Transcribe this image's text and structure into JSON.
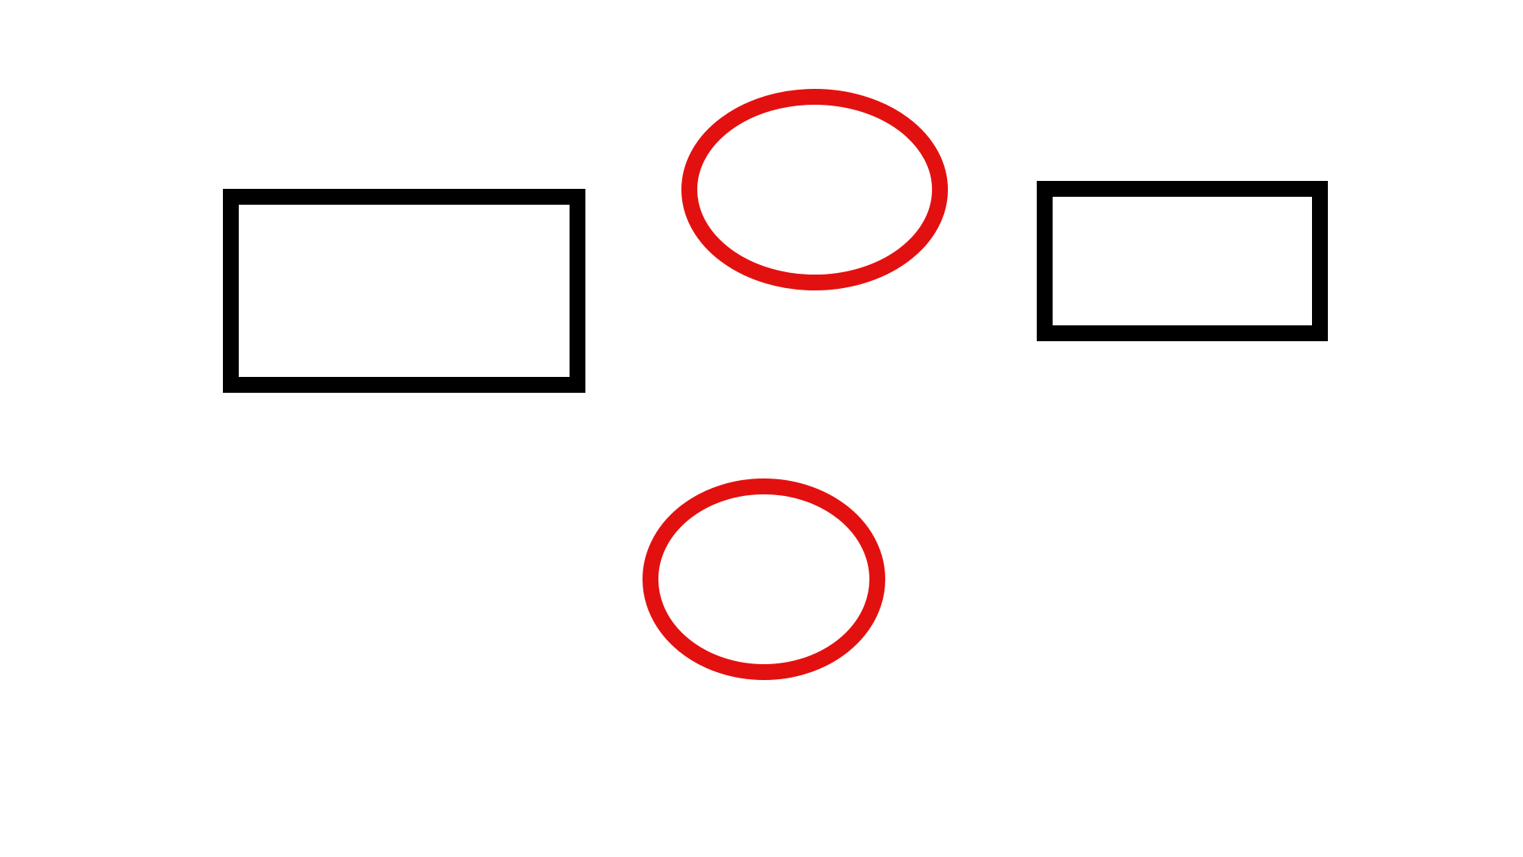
{
  "colors": {
    "background": "#ffffff",
    "rectangle_stroke": "#000000",
    "ellipse_stroke": "#e31010"
  },
  "shapes": [
    {
      "kind": "rectangle",
      "fill": "none"
    },
    {
      "kind": "ellipse",
      "fill": "none"
    },
    {
      "kind": "rectangle",
      "fill": "none"
    },
    {
      "kind": "ellipse",
      "fill": "none"
    }
  ]
}
